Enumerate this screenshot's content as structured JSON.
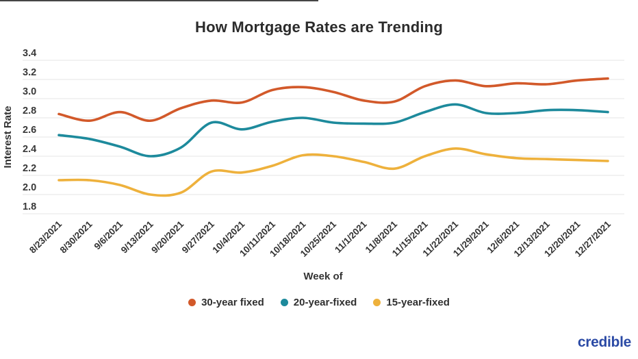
{
  "chart_data": {
    "type": "line",
    "title": "How Mortgage Rates are Trending",
    "xlabel": "Week of",
    "ylabel": "Interest Rate",
    "categories": [
      "8/23/2021",
      "8/30/2021",
      "9/6/2021",
      "9/13/2021",
      "9/20/2021",
      "9/27/2021",
      "10/4/2021",
      "10/11/2021",
      "10/18/2021",
      "10/25/2021",
      "11/1/2021",
      "11/8/2021",
      "11/15/2021",
      "11/22/2021",
      "11/29/2021",
      "12/6/2021",
      "12/13/2021",
      "12/20/2021",
      "12/27/2021"
    ],
    "yticks": [
      "3.4",
      "3.2",
      "3.0",
      "2.8",
      "2.6",
      "2.4",
      "2.2",
      "2.0",
      "1.8"
    ],
    "ylim": [
      1.8,
      3.4
    ],
    "grid": "horizontal",
    "x_tick_rotation": 45,
    "legend_position": "bottom",
    "series": [
      {
        "name": "30-year fixed",
        "color": "#d2592a",
        "values": [
          2.84,
          2.77,
          2.86,
          2.77,
          2.9,
          2.98,
          2.96,
          3.09,
          3.12,
          3.07,
          2.98,
          2.97,
          3.13,
          3.19,
          3.13,
          3.16,
          3.15,
          3.19,
          3.21
        ]
      },
      {
        "name": "20-year-fixed",
        "color": "#1d8a9c",
        "values": [
          2.62,
          2.58,
          2.5,
          2.4,
          2.49,
          2.75,
          2.68,
          2.76,
          2.8,
          2.75,
          2.74,
          2.75,
          2.86,
          2.94,
          2.85,
          2.85,
          2.88,
          2.88,
          2.86
        ]
      },
      {
        "name": "15-year-fixed",
        "color": "#eeb13c",
        "values": [
          2.15,
          2.15,
          2.1,
          2.0,
          2.02,
          2.24,
          2.23,
          2.3,
          2.41,
          2.4,
          2.34,
          2.27,
          2.4,
          2.48,
          2.42,
          2.38,
          2.37,
          2.36,
          2.35
        ]
      }
    ]
  },
  "footer": {
    "brand": "credible",
    "brand_color": "#2b4aa5"
  }
}
